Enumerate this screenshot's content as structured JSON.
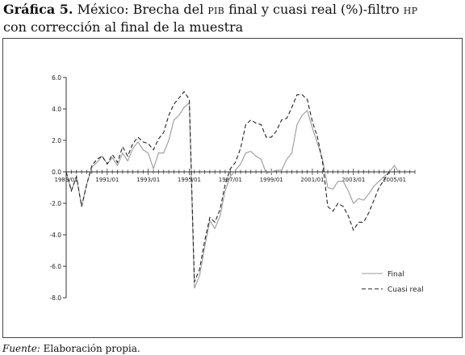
{
  "title": {
    "lead": "Gráfica 5.",
    "part1": " México: Brecha del ",
    "pib": "PIB",
    "part2": " final y cuasi real (%)-filtro ",
    "hp": "HP",
    "line2": "con corrección al final de la muestra"
  },
  "source": {
    "label": "Fuente:",
    "text": " Elaboración propia."
  },
  "chart_data": {
    "type": "line",
    "ylim": [
      -8,
      6
    ],
    "yticks": [
      -8,
      -6,
      -4,
      -2,
      0,
      2,
      4,
      6
    ],
    "ytick_labels": [
      "-8.0",
      "-6.0",
      "-4.0",
      "-2.0",
      "0.0",
      "2.0",
      "4.0",
      "6.0"
    ],
    "xlim": [
      0,
      68
    ],
    "xtick_labels": [
      "1989/01",
      "1991/01",
      "1993/01",
      "1995/01",
      "1997/01",
      "1999/01",
      "2001/01",
      "2003/01",
      "2005/01"
    ],
    "xtick_positions": [
      0,
      8,
      16,
      24,
      32,
      40,
      48,
      56,
      64
    ],
    "legend_position": "bottom-right",
    "series": [
      {
        "name": "Final",
        "style": "solid",
        "color": "#9a9a9a",
        "x": [
          0,
          1,
          2,
          3,
          4,
          5,
          6,
          7,
          8,
          9,
          10,
          11,
          12,
          13,
          14,
          15,
          16,
          17,
          18,
          19,
          20,
          21,
          22,
          23,
          24,
          25,
          26,
          27,
          28,
          29,
          30,
          31,
          32,
          33,
          34,
          35,
          36,
          37,
          38,
          39,
          40,
          41,
          42,
          43,
          44,
          45,
          46,
          47,
          48,
          49,
          50,
          51,
          52,
          53,
          54,
          55,
          56,
          57,
          58,
          59,
          60,
          61,
          62,
          63,
          64,
          65
        ],
        "y": [
          0.0,
          -1.2,
          -0.3,
          -2.2,
          -0.8,
          0.3,
          0.6,
          1.0,
          0.5,
          0.9,
          0.4,
          1.2,
          0.7,
          1.5,
          1.9,
          1.4,
          1.2,
          0.2,
          1.2,
          1.2,
          2.0,
          3.3,
          3.6,
          4.1,
          4.4,
          -7.4,
          -6.6,
          -4.8,
          -3.1,
          -3.6,
          -2.8,
          -1.2,
          -0.3,
          0.1,
          0.5,
          1.2,
          1.3,
          1.0,
          0.8,
          -0.1,
          0.0,
          0.1,
          0.1,
          0.8,
          1.2,
          3.0,
          3.6,
          3.9,
          2.8,
          1.8,
          0.8,
          -1.0,
          -1.1,
          -0.6,
          -0.6,
          -1.2,
          -2.0,
          -1.7,
          -1.8,
          -1.4,
          -0.9,
          -0.6,
          -0.3,
          0.0,
          0.4,
          -0.1
        ]
      },
      {
        "name": "Cuasi real",
        "style": "dashed",
        "color": "#222222",
        "x": [
          0,
          1,
          2,
          3,
          4,
          5,
          6,
          7,
          8,
          9,
          10,
          11,
          12,
          13,
          14,
          15,
          16,
          17,
          18,
          19,
          20,
          21,
          22,
          23,
          24,
          25,
          26,
          27,
          28,
          29,
          30,
          31,
          32,
          33,
          34,
          35,
          36,
          37,
          38,
          39,
          40,
          41,
          42,
          43,
          44,
          45,
          46,
          47,
          48,
          49,
          50,
          51,
          52,
          53,
          54,
          55,
          56,
          57,
          58,
          59,
          60,
          61,
          62,
          63,
          64,
          65
        ],
        "y": [
          0.0,
          -1.2,
          -0.3,
          -2.2,
          -0.8,
          0.4,
          0.8,
          1.0,
          0.5,
          1.1,
          0.6,
          1.6,
          1.0,
          1.8,
          2.2,
          1.9,
          1.8,
          1.4,
          2.1,
          2.5,
          3.6,
          4.3,
          4.7,
          5.1,
          4.6,
          -7.0,
          -6.2,
          -4.4,
          -2.9,
          -3.2,
          -2.4,
          -0.8,
          0.2,
          0.6,
          1.5,
          3.0,
          3.3,
          3.1,
          3.0,
          2.2,
          2.2,
          2.6,
          3.3,
          3.4,
          4.1,
          4.9,
          4.9,
          4.6,
          3.2,
          2.2,
          0.6,
          -2.2,
          -2.5,
          -2.0,
          -2.2,
          -2.8,
          -3.7,
          -3.2,
          -3.2,
          -2.6,
          -1.8,
          -1.0,
          -0.5,
          0.0,
          0.0,
          0.0
        ]
      }
    ]
  }
}
